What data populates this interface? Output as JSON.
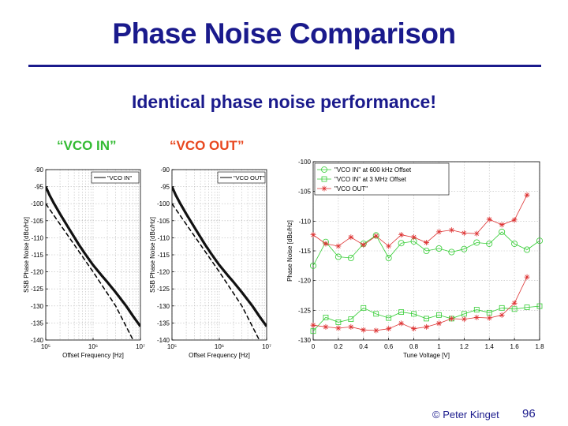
{
  "slide": {
    "title": "Phase Noise Comparison",
    "subtitle": "Identical phase noise performance!",
    "caption_left": "“VCO IN”",
    "caption_right": "“VCO OUT”",
    "footer_copyright": "© Peter Kinget",
    "page_number": "96",
    "colors": {
      "title": "#1a1a8c",
      "caption_left": "#33bb33",
      "caption_right": "#e8471f"
    }
  },
  "chart_data": [
    {
      "type": "line",
      "xscale": "log",
      "xlim": [
        100000,
        10000000
      ],
      "ylim": [
        -140,
        -90
      ],
      "xlabel": "Offset Frequency [Hz]",
      "ylabel": "SSB Phase Noise [dBc/Hz]",
      "xticks": [
        100000,
        1000000,
        10000000
      ],
      "xtick_labels": [
        "10⁵",
        "10⁶",
        "10⁷"
      ],
      "yticks": [
        -90,
        -95,
        -100,
        -105,
        -110,
        -115,
        -120,
        -125,
        -130,
        -135,
        -140
      ],
      "grid": true,
      "legend": "top-right",
      "series": [
        {
          "name": "\"VCO IN\"",
          "style": "solid",
          "x": [
            100000,
            120000,
            150000,
            200000,
            300000,
            500000,
            700000,
            1000000,
            1500000,
            2000000,
            3000000,
            5000000,
            7000000,
            10000000
          ],
          "y": [
            -95,
            -97.5,
            -100,
            -103,
            -107,
            -112,
            -115,
            -118,
            -121,
            -123,
            -126,
            -130,
            -133,
            -136
          ]
        },
        {
          "name": "",
          "style": "dashed",
          "x": [
            100000,
            1000000,
            3000000,
            7000000
          ],
          "y": [
            -100,
            -120,
            -130,
            -140
          ]
        }
      ]
    },
    {
      "type": "line",
      "xscale": "log",
      "xlim": [
        100000,
        10000000
      ],
      "ylim": [
        -140,
        -90
      ],
      "xlabel": "Offset Frequency  [Hz]",
      "ylabel": "SSB Phase Noise [dBc/Hz]",
      "xticks": [
        100000,
        1000000,
        10000000
      ],
      "xtick_labels": [
        "10⁵",
        "10⁶",
        "10⁷"
      ],
      "yticks": [
        -90,
        -95,
        -100,
        -105,
        -110,
        -115,
        -120,
        -125,
        -130,
        -135,
        -140
      ],
      "grid": true,
      "legend": "top-right",
      "series": [
        {
          "name": "\"VCO OUT\"",
          "style": "solid",
          "x": [
            100000,
            120000,
            150000,
            200000,
            300000,
            500000,
            700000,
            1000000,
            1500000,
            2000000,
            3000000,
            5000000,
            7000000,
            10000000
          ],
          "y": [
            -95,
            -97.5,
            -100,
            -103,
            -107,
            -112,
            -115,
            -118,
            -121,
            -123,
            -126,
            -130,
            -133,
            -136
          ]
        },
        {
          "name": "",
          "style": "dashed",
          "x": [
            100000,
            1000000,
            3000000,
            7000000
          ],
          "y": [
            -100,
            -120,
            -130,
            -140
          ]
        }
      ]
    },
    {
      "type": "line",
      "xlim": [
        0,
        1.8
      ],
      "ylim": [
        -130,
        -100
      ],
      "xlabel": "Tune Voltage [V]",
      "ylabel": "Phase Noise [dBc/Hz]",
      "xticks": [
        0,
        0.2,
        0.4,
        0.6,
        0.8,
        1,
        1.2,
        1.4,
        1.6,
        1.8
      ],
      "xtick_labels": [
        "0",
        "0.2",
        "0.4",
        "0.6",
        "0.8",
        "1",
        "1.2",
        "1.4",
        "1.6",
        "1.8"
      ],
      "yticks": [
        -100,
        -105,
        -110,
        -115,
        -120,
        -125,
        -130
      ],
      "grid": true,
      "legend": "top-left",
      "x": [
        0,
        0.1,
        0.2,
        0.3,
        0.4,
        0.5,
        0.6,
        0.7,
        0.8,
        0.9,
        1.0,
        1.1,
        1.2,
        1.3,
        1.4,
        1.5,
        1.6,
        1.7,
        1.8
      ],
      "series": [
        {
          "name": "\"VCO IN\" at 600 kHz Offset",
          "marker": "circle",
          "color": "#33cc33",
          "x": [
            0,
            0.1,
            0.2,
            0.3,
            0.4,
            0.5,
            0.6,
            0.7,
            0.8,
            0.9,
            1.0,
            1.1,
            1.2,
            1.3,
            1.4,
            1.5,
            1.6,
            1.7,
            1.8
          ],
          "y": [
            -117.5,
            -113.5,
            -116,
            -116.2,
            -113.8,
            -112.4,
            -116.2,
            -113.7,
            -113.4,
            -115,
            -114.6,
            -115.2,
            -114.7,
            -113.6,
            -113.8,
            -111.8,
            -113.8,
            -114.8,
            -113.3
          ]
        },
        {
          "name": "\"VCO IN\" at 3 MHz Offset",
          "marker": "square",
          "color": "#33cc33",
          "x": [
            0,
            0.1,
            0.2,
            0.3,
            0.4,
            0.5,
            0.6,
            0.7,
            0.8,
            0.9,
            1.0,
            1.1,
            1.2,
            1.3,
            1.4,
            1.5,
            1.6,
            1.7,
            1.8
          ],
          "y": [
            -128.5,
            -126.2,
            -127,
            -126.5,
            -124.6,
            -125.6,
            -126.3,
            -125.3,
            -125.6,
            -126.4,
            -125.8,
            -126.4,
            -125.6,
            -124.9,
            -125.4,
            -124.6,
            -124.8,
            -124.5,
            -124.3
          ]
        },
        {
          "name": "\"VCO OUT\"",
          "marker": "asterisk",
          "color": "#dd3333",
          "x": [
            0,
            0.1,
            0.2,
            0.3,
            0.4,
            0.5,
            0.6,
            0.7,
            0.8,
            0.9,
            1.0,
            1.1,
            1.2,
            1.3,
            1.4,
            1.5,
            1.6,
            1.7
          ],
          "y": [
            -112.3,
            -113.8,
            -114.2,
            -112.7,
            -114,
            -112.5,
            -114.2,
            -112.3,
            -112.7,
            -113.6,
            -111.8,
            -111.5,
            -112,
            -112.1,
            -109.7,
            -110.6,
            -109.8,
            -105.6
          ]
        },
        {
          "name": "",
          "marker": "asterisk",
          "color": "#dd3333",
          "x": [
            0,
            0.1,
            0.2,
            0.3,
            0.4,
            0.5,
            0.6,
            0.7,
            0.8,
            0.9,
            1.0,
            1.1,
            1.2,
            1.3,
            1.4,
            1.5,
            1.6,
            1.7
          ],
          "y": [
            -127.5,
            -127.8,
            -128,
            -127.8,
            -128.3,
            -128.4,
            -128.1,
            -127.2,
            -128.1,
            -127.8,
            -127.2,
            -126.4,
            -126.5,
            -126.2,
            -126.3,
            -125.8,
            -123.8,
            -119.4
          ]
        }
      ]
    }
  ]
}
